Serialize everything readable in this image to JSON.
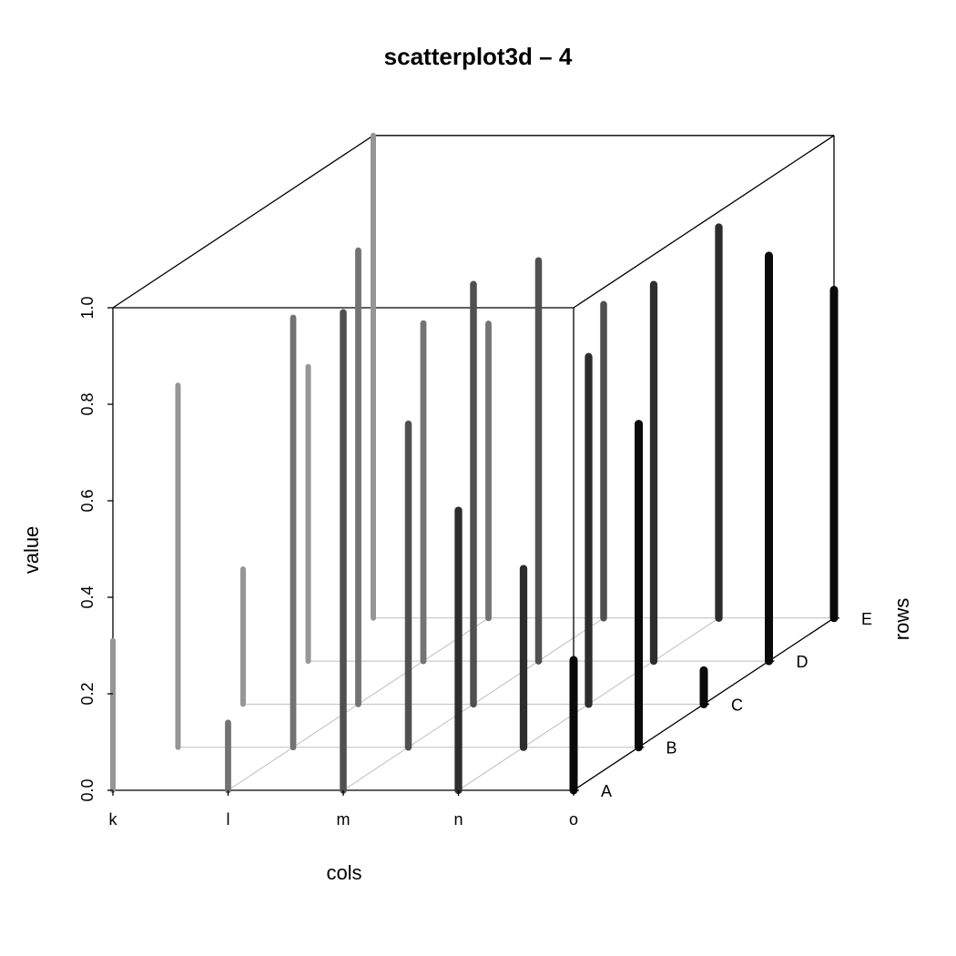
{
  "chart_data": {
    "type": "scatter",
    "title": "scatterplot3d – 4",
    "xlabel": "cols",
    "ylabel": "rows",
    "zlabel": "value",
    "x_categories": [
      "k",
      "l",
      "m",
      "n",
      "o"
    ],
    "y_categories": [
      "A",
      "B",
      "C",
      "D",
      "E"
    ],
    "z_ticks": [
      "0.0",
      "0.2",
      "0.4",
      "0.6",
      "0.8",
      "1.0"
    ],
    "zlim": [
      0,
      1
    ],
    "points": [
      {
        "col": "k",
        "row": "A",
        "value": 0.31
      },
      {
        "col": "k",
        "row": "B",
        "value": 0.75
      },
      {
        "col": "k",
        "row": "C",
        "value": 0.28
      },
      {
        "col": "k",
        "row": "D",
        "value": 0.61
      },
      {
        "col": "k",
        "row": "E",
        "value": 1.0
      },
      {
        "col": "l",
        "row": "A",
        "value": 0.14
      },
      {
        "col": "l",
        "row": "B",
        "value": 0.89
      },
      {
        "col": "l",
        "row": "C",
        "value": 0.94
      },
      {
        "col": "l",
        "row": "D",
        "value": 0.7
      },
      {
        "col": "l",
        "row": "E",
        "value": 0.61
      },
      {
        "col": "m",
        "row": "A",
        "value": 0.99
      },
      {
        "col": "m",
        "row": "B",
        "value": 0.67
      },
      {
        "col": "m",
        "row": "C",
        "value": 0.87
      },
      {
        "col": "m",
        "row": "D",
        "value": 0.83
      },
      {
        "col": "m",
        "row": "E",
        "value": 0.65
      },
      {
        "col": "n",
        "row": "A",
        "value": 0.58
      },
      {
        "col": "n",
        "row": "B",
        "value": 0.37
      },
      {
        "col": "n",
        "row": "C",
        "value": 0.72
      },
      {
        "col": "n",
        "row": "D",
        "value": 0.78
      },
      {
        "col": "n",
        "row": "E",
        "value": 0.81
      },
      {
        "col": "o",
        "row": "A",
        "value": 0.27
      },
      {
        "col": "o",
        "row": "B",
        "value": 0.67
      },
      {
        "col": "o",
        "row": "C",
        "value": 0.07
      },
      {
        "col": "o",
        "row": "D",
        "value": 0.84
      },
      {
        "col": "o",
        "row": "E",
        "value": 0.68
      }
    ],
    "grid": true,
    "box": true
  }
}
